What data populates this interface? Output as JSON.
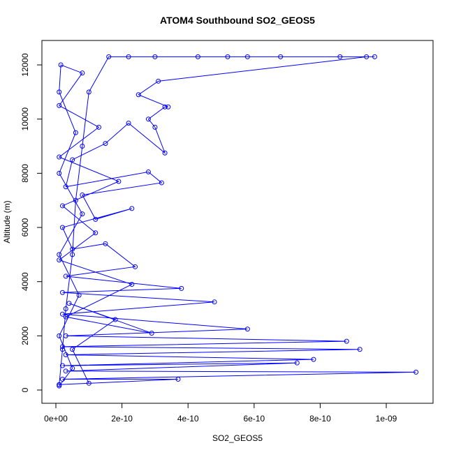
{
  "chart_data": {
    "type": "line",
    "title": "ATOM4 Southbound SO2_GEOS5",
    "x_label": "SO2_GEOS5",
    "y_label": "Altitude (m)",
    "color": "#0000ff",
    "markers": true,
    "x": [
      1e-11,
      2e-11,
      3e-11,
      5e-11,
      6e-11,
      8e-11,
      1e-10,
      1.6e-10,
      2.2e-10,
      3e-10,
      4.3e-10,
      5.2e-10,
      5.8e-10,
      6.8e-10,
      8.6e-10,
      9.65e-10,
      9.4e-10,
      3.1e-10,
      2.5e-10,
      3.4e-10,
      3.3e-10,
      2.8e-10,
      3e-10,
      3.3e-10,
      2.2e-10,
      1.5e-10,
      5e-11,
      3e-11,
      2.8e-10,
      3.2e-10,
      8e-11,
      1.2e-10,
      2.3e-10,
      2e-11,
      5e-11,
      1.5e-10,
      2.4e-10,
      3e-11,
      3.8e-10,
      2e-11,
      4.8e-10,
      2e-11,
      5.8e-10,
      3e-11,
      8.8e-10,
      2e-11,
      9.2e-10,
      3e-11,
      7.8e-10,
      2e-11,
      7.3e-10,
      3e-11,
      1.09e-09,
      2e-11,
      3.7e-10,
      1e-11,
      1e-10,
      5e-11,
      1.8e-10,
      4e-11,
      2.9e-10,
      3e-11,
      2.3e-10,
      1e-11,
      1.2e-10,
      2e-11,
      1.9e-10,
      1e-11,
      1.3e-10,
      1e-11,
      8e-11,
      1.5e-11,
      1e-11,
      6e-11,
      1e-11,
      8e-11,
      1e-11,
      7e-11,
      1e-11,
      5e-11,
      1e-11
    ],
    "values": [
      200,
      1500,
      3000,
      5000,
      7000,
      9000,
      11000,
      12300,
      12300,
      12300,
      12300,
      12300,
      12300,
      12300,
      12300,
      12300,
      12300,
      11400,
      10900,
      10450,
      10450,
      10000,
      9700,
      8750,
      9850,
      9100,
      8500,
      7500,
      8050,
      7650,
      7200,
      6300,
      6700,
      6000,
      5200,
      5400,
      4550,
      4200,
      3750,
      3600,
      3250,
      2800,
      2250,
      2000,
      1800,
      1600,
      1500,
      1300,
      1130,
      900,
      1000,
      700,
      660,
      400,
      400,
      200,
      250,
      1500,
      2600,
      3200,
      2100,
      2700,
      3900,
      4800,
      5800,
      6800,
      7700,
      8600,
      9700,
      10500,
      11700,
      12000,
      11000,
      9500,
      8000,
      6500,
      5000,
      3500,
      2000,
      800,
      150
    ],
    "xlim": [
      -4.23e-11,
      1.1416e-09
    ],
    "ylim": [
      -489,
      12902
    ],
    "xticks": [
      {
        "value": 0,
        "label": "0e+00"
      },
      {
        "value": 2e-10,
        "label": "2e-10"
      },
      {
        "value": 4e-10,
        "label": "4e-10"
      },
      {
        "value": 6e-10,
        "label": "6e-10"
      },
      {
        "value": 8e-10,
        "label": "8e-10"
      },
      {
        "value": 1e-09,
        "label": "1e-09"
      }
    ],
    "yticks": [
      0,
      2000,
      4000,
      6000,
      8000,
      10000,
      12000
    ]
  }
}
